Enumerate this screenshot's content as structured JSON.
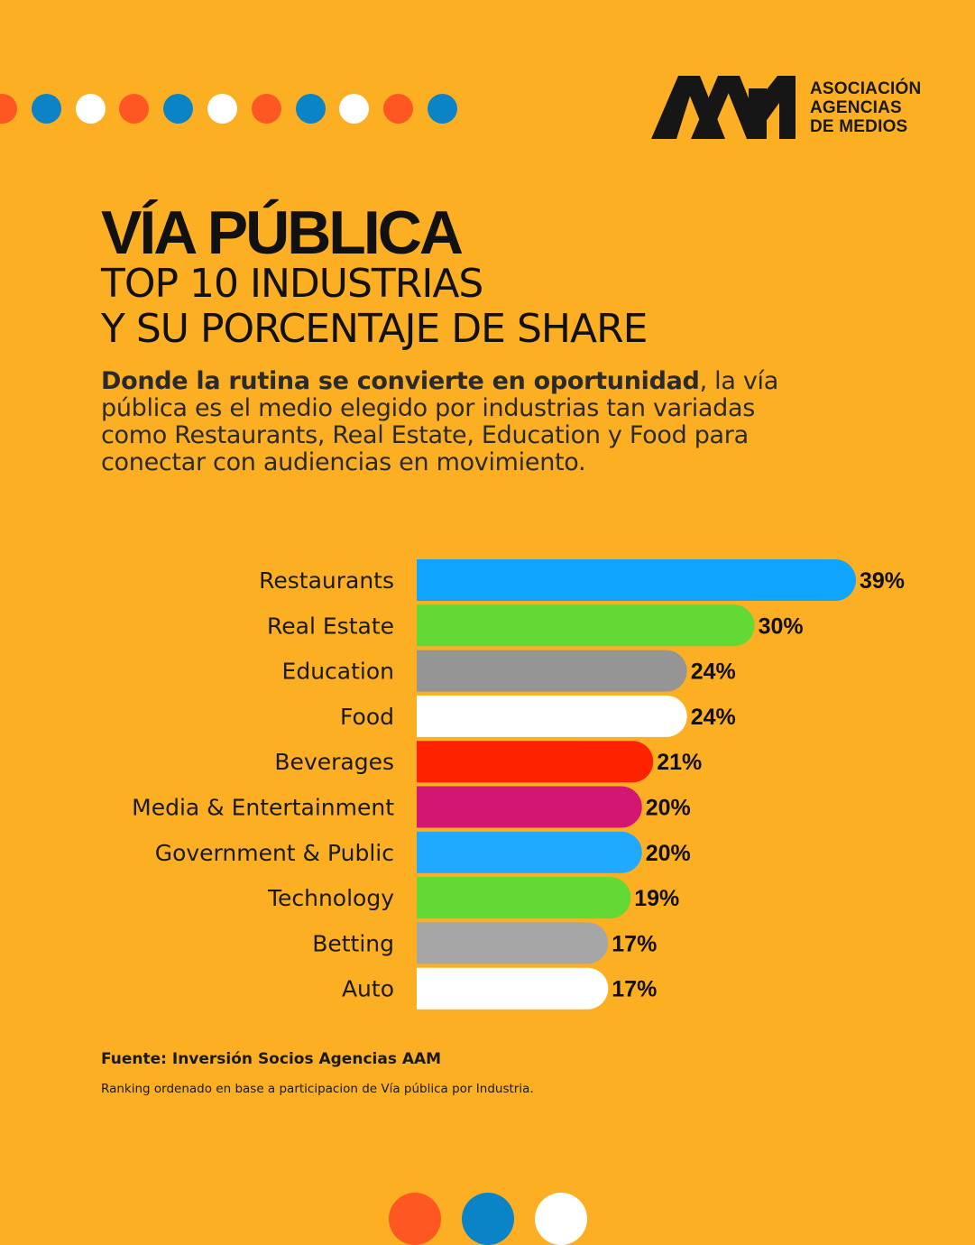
{
  "header": {
    "logo_text_line1": "ASOCIACIÓN",
    "logo_text_line2": "AGENCIAS",
    "logo_text_line3": "DE MEDIOS",
    "dot_colors": [
      "#FF5722",
      "#0A84C6",
      "#FFFFFF"
    ]
  },
  "title": "VÍA PÚBLICA",
  "subtitle_line1": "TOP 10 INDUSTRIAS",
  "subtitle_line2": "Y SU PORCENTAJE DE SHARE",
  "intro": {
    "bold": "Donde la rutina se convierte en oportunidad",
    "rest": ", la vía pública es el medio elegido por industrias tan variadas como Restaurants, Real Estate, Education y Food para conectar con audiencias en movimiento."
  },
  "chart_data": {
    "type": "bar",
    "orientation": "horizontal",
    "title": "",
    "xlabel": "",
    "ylabel": "",
    "xlim": [
      0,
      39
    ],
    "unit": "%",
    "grid": false,
    "categories": [
      "Restaurants",
      "Real Estate",
      "Education",
      "Food",
      "Beverages",
      "Media & Entertainment",
      "Government & Public",
      "Technology",
      "Betting",
      "Auto"
    ],
    "values": [
      39,
      30,
      24,
      24,
      21,
      20,
      20,
      19,
      17,
      17
    ],
    "data_labels": [
      "39%",
      "30%",
      "24%",
      "24%",
      "21%",
      "20%",
      "20%",
      "19%",
      "17%",
      "17%"
    ],
    "colors": [
      "#0FA5FF",
      "#62D935",
      "#959595",
      "#FFFFFF",
      "#FF2200",
      "#D41673",
      "#20AAFF",
      "#62D935",
      "#A6A6A6",
      "#FFFFFF"
    ]
  },
  "footer": {
    "source": "Fuente: Inversión Socios Agencias AAM",
    "note": "Ranking ordenado en base a participacion de Vía pública por Industria."
  }
}
